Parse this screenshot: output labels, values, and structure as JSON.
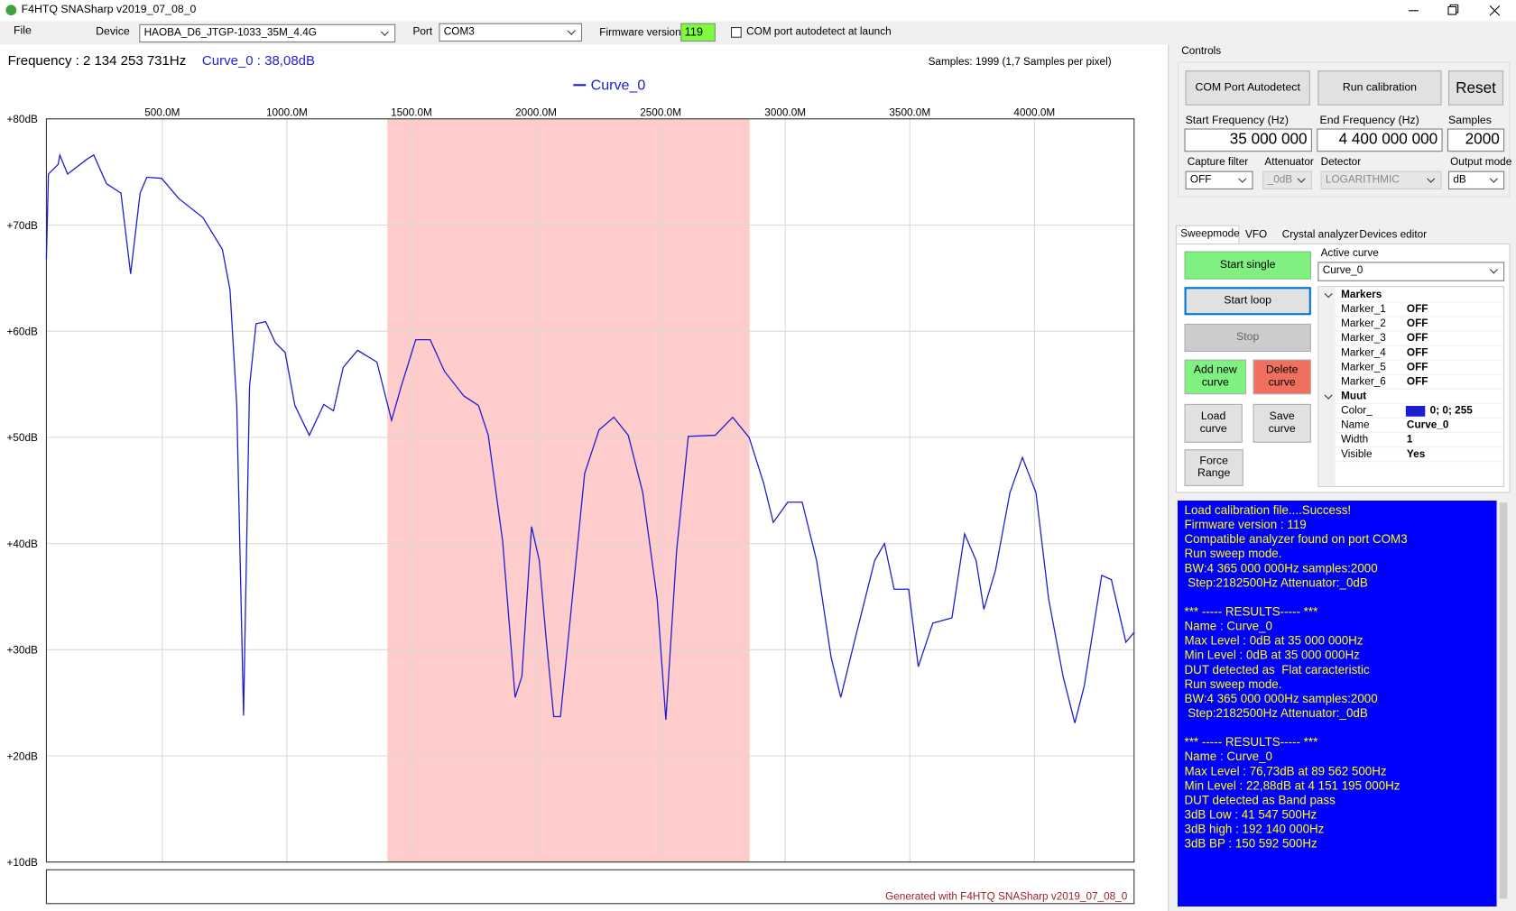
{
  "window": {
    "title": "F4HTQ SNASharp v2019_07_08_0"
  },
  "toolbar": {
    "menu": "File",
    "device_label": "Device",
    "device": "HAOBA_D6_JTGP-1033_35M_4.4G",
    "port_label": "Port",
    "port": "COM3",
    "firmware_label": "Firmware version",
    "firmware": "119",
    "autodetect": "COM port autodetect at launch"
  },
  "readout": {
    "frequency": "Frequency : 2 134 253 731Hz",
    "curve": "Curve_0 : 38,08dB",
    "samples": "Samples: 1999 (1,7 Samples per pixel)"
  },
  "chart_data": {
    "type": "line",
    "x": [
      35,
      43,
      82,
      89,
      120,
      198,
      225,
      276,
      334,
      373,
      411,
      438,
      497,
      566,
      663,
      741,
      772,
      799,
      826,
      850,
      876,
      915,
      954,
      993,
      1032,
      1090,
      1148,
      1187,
      1226,
      1284,
      1361,
      1420,
      1459,
      1517,
      1575,
      1633,
      1710,
      1769,
      1808,
      1866,
      1916,
      1943,
      1982,
      2013,
      2040,
      2071,
      2098,
      2137,
      2195,
      2253,
      2312,
      2370,
      2428,
      2486,
      2521,
      2564,
      2611,
      2719,
      2789,
      2855,
      2913,
      2952,
      3010,
      3068,
      3126,
      3184,
      3223,
      3281,
      3359,
      3398,
      3437,
      3495,
      3534,
      3592,
      3669,
      3720,
      3766,
      3797,
      3844,
      3902,
      3952,
      4006,
      4057,
      4115,
      4162,
      4200,
      4270,
      4309,
      4367,
      4399
    ],
    "series": [
      {
        "name": "Curve_0",
        "color": "#1c1cd0",
        "values": [
          66.8,
          74.8,
          75.7,
          76.6,
          74.8,
          76.2,
          76.6,
          73.9,
          73.0,
          65.4,
          73.0,
          74.5,
          74.4,
          72.5,
          70.7,
          67.7,
          63.9,
          53.0,
          23.8,
          54.8,
          60.7,
          60.9,
          58.9,
          58.0,
          53.0,
          50.2,
          53.1,
          52.5,
          56.6,
          58.2,
          57.1,
          51.6,
          54.8,
          59.2,
          59.2,
          56.2,
          53.9,
          53.0,
          50.2,
          40.2,
          25.5,
          27.5,
          41.6,
          38.4,
          31.1,
          23.7,
          23.7,
          32.9,
          46.6,
          50.7,
          51.9,
          50.2,
          44.8,
          34.8,
          23.4,
          39.3,
          50.1,
          50.2,
          51.9,
          50.0,
          45.7,
          42.0,
          43.9,
          43.9,
          38.4,
          29.3,
          25.5,
          31.1,
          38.4,
          40.0,
          35.7,
          35.7,
          28.4,
          32.5,
          33.0,
          40.9,
          38.4,
          33.8,
          37.5,
          44.8,
          48.1,
          44.8,
          34.8,
          27.5,
          23.1,
          26.6,
          37.0,
          36.6,
          30.7,
          31.6
        ]
      }
    ],
    "xlim": [
      35,
      4400
    ],
    "xticks": [
      {
        "value": 500,
        "label": "500.0M"
      },
      {
        "value": 1000,
        "label": "1000.0M"
      },
      {
        "value": 1500,
        "label": "1500.0M"
      },
      {
        "value": 2000,
        "label": "2000.0M"
      },
      {
        "value": 2500,
        "label": "2500.0M"
      },
      {
        "value": 3000,
        "label": "3000.0M"
      },
      {
        "value": 3500,
        "label": "3500.0M"
      },
      {
        "value": 4000,
        "label": "4000.0M"
      }
    ],
    "ylim": [
      10,
      80
    ],
    "yticks": [
      {
        "value": 80,
        "label": "+80dB"
      },
      {
        "value": 70,
        "label": "+70dB"
      },
      {
        "value": 60,
        "label": "+60dB"
      },
      {
        "value": 50,
        "label": "+50dB"
      },
      {
        "value": 40,
        "label": "+40dB"
      },
      {
        "value": 30,
        "label": "+30dB"
      },
      {
        "value": 20,
        "label": "+20dB"
      },
      {
        "value": 10,
        "label": "+10dB"
      }
    ],
    "grid": true,
    "highlight": [
      1403,
      2857
    ],
    "highlight_color": "#ffcccc",
    "footer": "Generated with F4HTQ SNASharp v2019_07_08_0"
  },
  "controls": {
    "title": "Controls",
    "com_autodetect": "COM Port Autodetect",
    "run_calibration": "Run calibration",
    "reset": "Reset",
    "start_label": "Start Frequency (Hz)",
    "start": "35 000 000",
    "end_label": "End Frequency (Hz)",
    "end": "4 400 000 000",
    "samples_label": "Samples",
    "samples": "2000",
    "filter_label": "Capture filter",
    "filter": "OFF",
    "attenuator_label": "Attenuator",
    "attenuator": "_0dB",
    "detector_label": "Detector",
    "detector": "LOGARITHMIC",
    "output_label": "Output mode",
    "output": "dB"
  },
  "tabs": [
    "Sweepmode",
    "VFO",
    "Crystal analyzer",
    "Devices editor"
  ],
  "sweep": {
    "start_single": "Start single",
    "start_loop": "Start loop",
    "stop": "Stop",
    "add_curve": "Add new curve",
    "delete_curve": "Delete curve",
    "load_curve": "Load curve",
    "save_curve": "Save curve",
    "force_range": "Force Range",
    "active_label": "Active curve",
    "active": "Curve_0"
  },
  "properties": {
    "markers": "Markers",
    "marker_rows": [
      [
        "Marker_1",
        "OFF"
      ],
      [
        "Marker_2",
        "OFF"
      ],
      [
        "Marker_3",
        "OFF"
      ],
      [
        "Marker_4",
        "OFF"
      ],
      [
        "Marker_5",
        "OFF"
      ],
      [
        "Marker_6",
        "OFF"
      ]
    ],
    "muut": "Muut",
    "muut_rows": [
      [
        "Color_",
        "0; 0; 255"
      ],
      [
        "Name",
        "Curve_0"
      ],
      [
        "Width",
        "1"
      ],
      [
        "Visible",
        "Yes"
      ]
    ]
  },
  "log": [
    [
      "Load calibration file....Success!",
      "Firmware version : 119",
      "Compatible analyzer found on port COM3",
      "Run sweep mode.",
      "BW:4 365 000 000Hz samples:2000",
      " Step:2182500Hz Attenuator:_0dB"
    ],
    [
      "*** ----- RESULTS----- ***",
      "Name : Curve_0",
      "Max Level : 0dB at 35 000 000Hz",
      "Min Level : 0dB at 35 000 000Hz",
      "DUT detected as  Flat caracteristic",
      "Run sweep mode.",
      "BW:4 365 000 000Hz samples:2000",
      " Step:2182500Hz Attenuator:_0dB"
    ],
    [
      "*** ----- RESULTS----- ***",
      "Name : Curve_0",
      "Max Level : 76,73dB at 89 562 500Hz",
      "Min Level : 22,88dB at 4 151 195 000Hz",
      "DUT detected as Band pass",
      "3dB Low : 41 547 500Hz",
      "3dB high : 192 140 000Hz",
      "3dB BP : 150 592 500Hz"
    ]
  ]
}
